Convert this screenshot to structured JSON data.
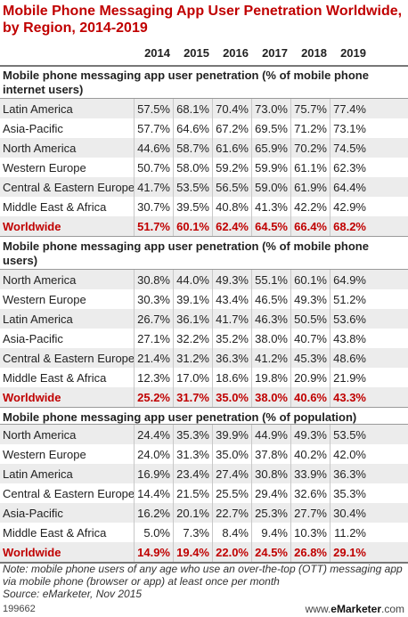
{
  "title": "Mobile Phone Messaging App User Penetration Worldwide, by Region, 2014-2019",
  "chart_data": {
    "type": "table",
    "years": [
      "2014",
      "2015",
      "2016",
      "2017",
      "2018",
      "2019"
    ],
    "sections": [
      {
        "title": "Mobile phone messaging app user penetration (% of mobile phone internet users)",
        "rows": [
          {
            "label": "Latin America",
            "values": [
              "57.5%",
              "68.1%",
              "70.4%",
              "73.0%",
              "75.7%",
              "77.4%"
            ]
          },
          {
            "label": "Asia-Pacific",
            "values": [
              "57.7%",
              "64.6%",
              "67.2%",
              "69.5%",
              "71.2%",
              "73.1%"
            ]
          },
          {
            "label": "North America",
            "values": [
              "44.6%",
              "58.7%",
              "61.6%",
              "65.9%",
              "70.2%",
              "74.5%"
            ]
          },
          {
            "label": "Western Europe",
            "values": [
              "50.7%",
              "58.0%",
              "59.2%",
              "59.9%",
              "61.1%",
              "62.3%"
            ]
          },
          {
            "label": "Central & Eastern Europe",
            "values": [
              "41.7%",
              "53.5%",
              "56.5%",
              "59.0%",
              "61.9%",
              "64.4%"
            ]
          },
          {
            "label": "Middle East & Africa",
            "values": [
              "30.7%",
              "39.5%",
              "40.8%",
              "41.3%",
              "42.2%",
              "42.9%"
            ]
          },
          {
            "label": "Worldwide",
            "values": [
              "51.7%",
              "60.1%",
              "62.4%",
              "64.5%",
              "66.4%",
              "68.2%"
            ]
          }
        ]
      },
      {
        "title": "Mobile phone messaging app user penetration (% of mobile phone users)",
        "rows": [
          {
            "label": "North America",
            "values": [
              "30.8%",
              "44.0%",
              "49.3%",
              "55.1%",
              "60.1%",
              "64.9%"
            ]
          },
          {
            "label": "Western Europe",
            "values": [
              "30.3%",
              "39.1%",
              "43.4%",
              "46.5%",
              "49.3%",
              "51.2%"
            ]
          },
          {
            "label": "Latin America",
            "values": [
              "26.7%",
              "36.1%",
              "41.7%",
              "46.3%",
              "50.5%",
              "53.6%"
            ]
          },
          {
            "label": "Asia-Pacific",
            "values": [
              "27.1%",
              "32.2%",
              "35.2%",
              "38.0%",
              "40.7%",
              "43.8%"
            ]
          },
          {
            "label": "Central & Eastern Europe",
            "values": [
              "21.4%",
              "31.2%",
              "36.3%",
              "41.2%",
              "45.3%",
              "48.6%"
            ]
          },
          {
            "label": "Middle East & Africa",
            "values": [
              "12.3%",
              "17.0%",
              "18.6%",
              "19.8%",
              "20.9%",
              "21.9%"
            ]
          },
          {
            "label": "Worldwide",
            "values": [
              "25.2%",
              "31.7%",
              "35.0%",
              "38.0%",
              "40.6%",
              "43.3%"
            ]
          }
        ]
      },
      {
        "title": "Mobile phone messaging app user penetration (% of population)",
        "rows": [
          {
            "label": "North America",
            "values": [
              "24.4%",
              "35.3%",
              "39.9%",
              "44.9%",
              "49.3%",
              "53.5%"
            ]
          },
          {
            "label": "Western Europe",
            "values": [
              "24.0%",
              "31.3%",
              "35.0%",
              "37.8%",
              "40.2%",
              "42.0%"
            ]
          },
          {
            "label": "Latin America",
            "values": [
              "16.9%",
              "23.4%",
              "27.4%",
              "30.8%",
              "33.9%",
              "36.3%"
            ]
          },
          {
            "label": "Central & Eastern Europe",
            "values": [
              "14.4%",
              "21.5%",
              "25.5%",
              "29.4%",
              "32.6%",
              "35.3%"
            ]
          },
          {
            "label": "Asia-Pacific",
            "values": [
              "16.2%",
              "20.1%",
              "22.7%",
              "25.3%",
              "27.7%",
              "30.4%"
            ]
          },
          {
            "label": "Middle East & Africa",
            "values": [
              "5.0%",
              "7.3%",
              "8.4%",
              "9.4%",
              "10.3%",
              "11.2%"
            ]
          },
          {
            "label": "Worldwide",
            "values": [
              "14.9%",
              "19.4%",
              "22.0%",
              "24.5%",
              "26.8%",
              "29.1%"
            ]
          }
        ]
      }
    ]
  },
  "note": "Note: mobile phone users of any age who use an over-the-top (OTT) messaging app via mobile phone (browser or app) at least once per month",
  "source": "Source: eMarketer, Nov 2015",
  "footer": {
    "chart_id": "199662",
    "brand_prefix": "www.",
    "brand_name": "eMarketer",
    "brand_suffix": ".com"
  },
  "colors": {
    "accent": "#c00000",
    "stripe": "#ececec"
  }
}
